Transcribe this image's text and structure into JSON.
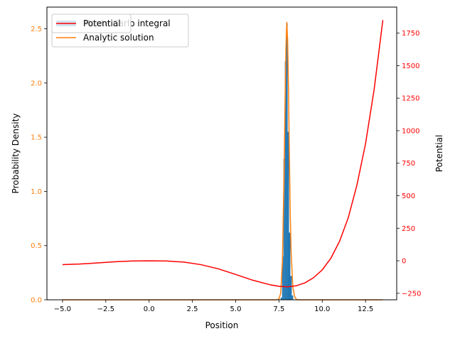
{
  "chart_data": {
    "type": "line",
    "xlabel": "Position",
    "ylabel_left": "Probability Density",
    "ylabel_right": "Potential",
    "xlim": [
      -5.9,
      14.3
    ],
    "ylim_left": [
      0,
      2.7
    ],
    "ylim_right": [
      -300,
      1950
    ],
    "x_ticks": [
      -5.0,
      -2.5,
      0.0,
      2.5,
      5.0,
      7.5,
      10.0,
      12.5
    ],
    "x_tick_labels": [
      "−5.0",
      "−2.5",
      "0.0",
      "2.5",
      "5.0",
      "7.5",
      "10.0",
      "12.5"
    ],
    "y_left_ticks": [
      0.0,
      0.5,
      1.0,
      1.5,
      2.0,
      2.5
    ],
    "y_left_tick_labels": [
      "0.0",
      "0.5",
      "1.0",
      "1.5",
      "2.0",
      "2.5"
    ],
    "y_right_ticks": [
      -250,
      0,
      250,
      500,
      750,
      1000,
      1250,
      1500,
      1750
    ],
    "y_right_tick_labels": [
      "−250",
      "0",
      "250",
      "500",
      "750",
      "1000",
      "1250",
      "1500",
      "1750"
    ],
    "grid": false,
    "legend_placement": "upper-left",
    "series": [
      {
        "name": "Monte Carlo integral",
        "kind": "histogram",
        "axis": "left",
        "color": "#1f77b4",
        "bins": [
          {
            "x0": 7.6,
            "x1": 7.68,
            "y": 0.02
          },
          {
            "x0": 7.68,
            "x1": 7.76,
            "y": 0.4
          },
          {
            "x0": 7.76,
            "x1": 7.84,
            "y": 1.3
          },
          {
            "x0": 7.84,
            "x1": 7.92,
            "y": 2.2
          },
          {
            "x0": 7.92,
            "x1": 8.0,
            "y": 2.55
          },
          {
            "x0": 8.0,
            "x1": 8.08,
            "y": 1.55
          },
          {
            "x0": 8.08,
            "x1": 8.16,
            "y": 0.62
          },
          {
            "x0": 8.16,
            "x1": 8.24,
            "y": 0.22
          },
          {
            "x0": 8.24,
            "x1": 8.32,
            "y": 0.04
          }
        ]
      },
      {
        "name": "Analytic solution",
        "kind": "line",
        "axis": "left",
        "color": "#ff7f0e",
        "x": [
          -5.0,
          7.4,
          7.5,
          7.6,
          7.7,
          7.8,
          7.85,
          7.9,
          7.95,
          8.0,
          8.05,
          8.1,
          8.15,
          8.2,
          8.3,
          8.4,
          8.5,
          8.6,
          13.5
        ],
        "y": [
          0.0,
          0.0,
          0.01,
          0.06,
          0.35,
          1.2,
          1.8,
          2.3,
          2.56,
          2.4,
          1.95,
          1.35,
          0.8,
          0.45,
          0.12,
          0.03,
          0.005,
          0.0,
          0.0
        ]
      },
      {
        "name": "Potential",
        "kind": "line",
        "axis": "right",
        "color": "#ff0000",
        "x": [
          -5.0,
          -4.0,
          -3.0,
          -2.0,
          -1.0,
          0.0,
          1.0,
          2.0,
          3.0,
          4.0,
          5.0,
          6.0,
          7.0,
          7.5,
          8.0,
          8.5,
          9.0,
          9.5,
          10.0,
          10.5,
          11.0,
          11.5,
          12.0,
          12.5,
          13.0,
          13.5
        ],
        "y": [
          -30,
          -25,
          -17,
          -8,
          -2,
          0,
          -2,
          -10,
          -30,
          -62,
          -105,
          -150,
          -185,
          -196,
          -200,
          -192,
          -170,
          -130,
          -70,
          20,
          150,
          330,
          580,
          900,
          1320,
          1850
        ]
      }
    ],
    "legend": [
      {
        "label": "Monte Carlo integral",
        "swatch": "patch",
        "color": "#1f77b4"
      },
      {
        "label": "Analytic solution",
        "swatch": "line",
        "color": "#ff7f0e"
      }
    ],
    "legend_right": [
      {
        "label": "Potential",
        "swatch": "line",
        "color": "#ff0000"
      }
    ],
    "colors": {
      "left_axis_ticks": "#ff7f0e",
      "right_axis_ticks": "#ff0000",
      "axes": "#000000"
    }
  }
}
